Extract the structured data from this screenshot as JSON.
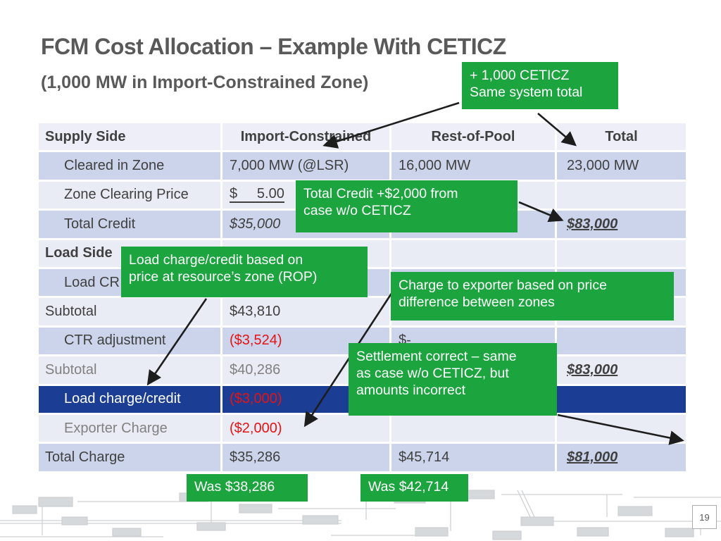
{
  "slide": {
    "title": "FCM Cost Allocation – Example With CETICZ",
    "subtitle": "(1,000 MW in Import-Constrained Zone)",
    "page_number": "19"
  },
  "colors": {
    "green": "#1CA43F",
    "navy": "#1B3E94",
    "band_dark": "#CBD4EA",
    "band_light": "#E9EBF5",
    "header_bg": "#EDEEF7",
    "red": "#E51313",
    "text_dark": "#404040",
    "text_gray": "#818181",
    "title_gray": "#595959"
  },
  "table": {
    "headers": [
      "Supply Side",
      "Import-Constrained",
      "Rest-of-Pool",
      "Total"
    ],
    "rows": [
      {
        "label": "Cleared in Zone",
        "indent": true,
        "band": "dark",
        "cells": [
          {
            "t": "7,000 MW (@LSR)"
          },
          {
            "t": "16,000 MW"
          },
          {
            "t": "23,000 MW"
          }
        ]
      },
      {
        "label": "Zone Clearing Price",
        "indent": true,
        "band": "light",
        "cells": [
          {
            "t": "$     5.00",
            "cls": "acct"
          },
          {
            "t": ""
          },
          {
            "t": ""
          }
        ]
      },
      {
        "label": "Total Credit",
        "indent": true,
        "band": "dark",
        "cells": [
          {
            "t": "$35,000",
            "cls": "italic"
          },
          {
            "t": ""
          },
          {
            "t": "$83,000",
            "cls": "total"
          }
        ]
      },
      {
        "label": "Load Side",
        "bold": true,
        "band": "light",
        "cells": [
          {
            "t": ""
          },
          {
            "t": ""
          },
          {
            "t": ""
          }
        ]
      },
      {
        "label": "Load CR",
        "indent": true,
        "band": "dark",
        "cells": [
          {
            "t": ""
          },
          {
            "t": ""
          },
          {
            "t": ""
          }
        ]
      },
      {
        "label": "Subtotal",
        "band": "light",
        "cells": [
          {
            "t": "$43,810"
          },
          {
            "t": ""
          },
          {
            "t": ""
          }
        ]
      },
      {
        "label": "CTR adjustment",
        "indent": true,
        "band": "dark",
        "cells": [
          {
            "t": "($3,524)",
            "cls": "red"
          },
          {
            "t": "$-"
          },
          {
            "t": ""
          }
        ]
      },
      {
        "label": "Subtotal",
        "gray": true,
        "band": "light",
        "cells": [
          {
            "t": "$40,286",
            "cls": "gray"
          },
          {
            "t": ""
          },
          {
            "t": "$83,000",
            "cls": "total"
          }
        ]
      },
      {
        "label": "Load charge/credit",
        "indent": true,
        "band": "navy",
        "cells": [
          {
            "t": "($3,000)",
            "cls": "red"
          },
          {
            "t": ""
          },
          {
            "t": ""
          }
        ]
      },
      {
        "label": "Exporter Charge",
        "indent": true,
        "gray": true,
        "band": "light",
        "cells": [
          {
            "t": "($2,000)",
            "cls": "red"
          },
          {
            "t": ""
          },
          {
            "t": ""
          }
        ]
      },
      {
        "label": "Total Charge",
        "band": "dark",
        "cells": [
          {
            "t": "$35,286"
          },
          {
            "t": "$45,714"
          },
          {
            "t": "$81,000",
            "cls": "total"
          }
        ]
      }
    ]
  },
  "callouts": [
    {
      "lines": [
        "+ 1,000 CETICZ",
        "Same system total"
      ]
    },
    {
      "lines": [
        "Total Credit +$2,000 from",
        "case w/o CETICZ"
      ]
    },
    {
      "lines": [
        "Load charge/credit based on",
        "price at resource’s zone (ROP)"
      ]
    },
    {
      "lines": [
        "Charge to exporter based on price",
        "difference between zones"
      ]
    },
    {
      "lines": [
        "Settlement correct – same",
        "as case w/o CETICZ, but",
        "amounts incorrect"
      ]
    },
    {
      "lines": [
        "Was $38,286"
      ]
    },
    {
      "lines": [
        "Was $42,714"
      ]
    }
  ]
}
